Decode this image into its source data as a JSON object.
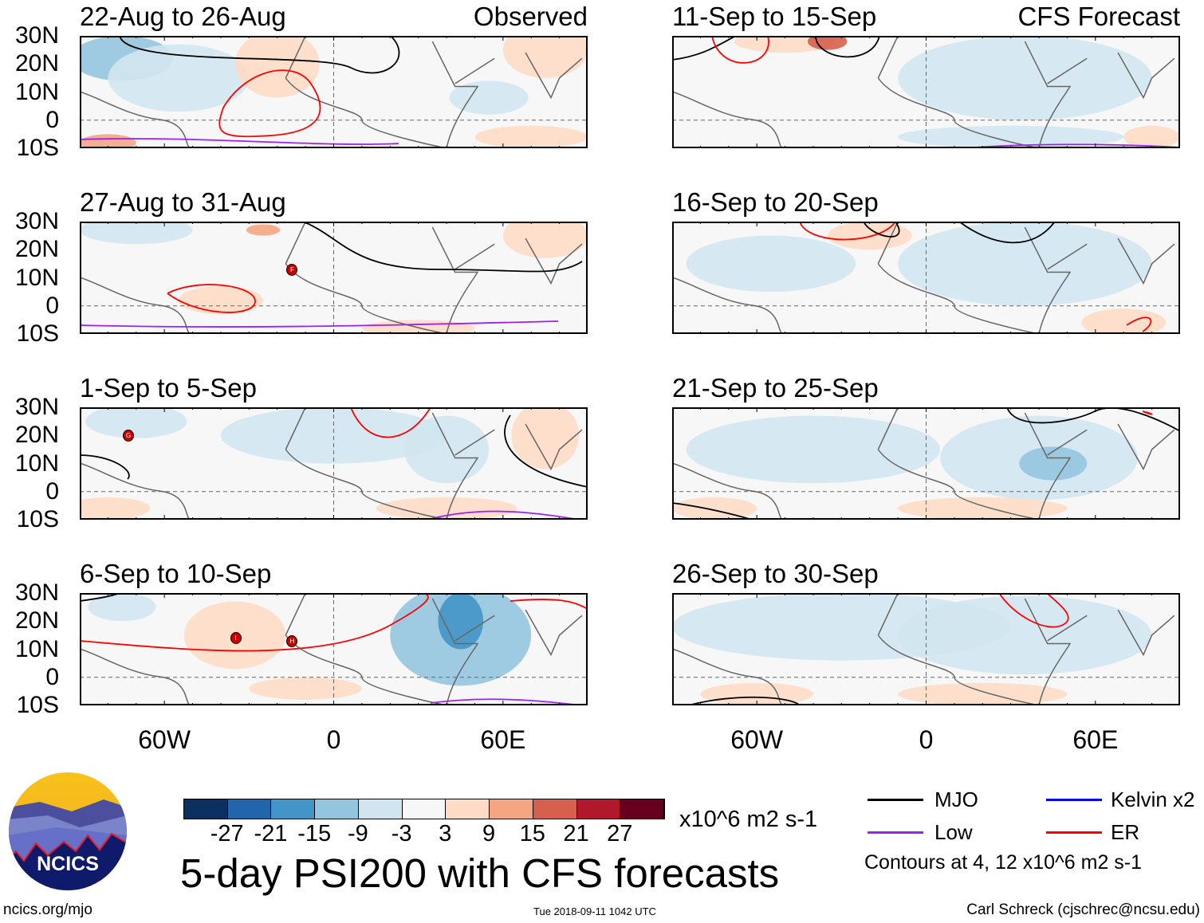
{
  "title": "5-day PSI200 with CFS forecasts",
  "columns": {
    "left_label": "Observed",
    "right_label": "CFS Forecast"
  },
  "panels_left": [
    "22-Aug to 26-Aug",
    "27-Aug to 31-Aug",
    "1-Sep to 5-Sep",
    "6-Sep to 10-Sep"
  ],
  "panels_right": [
    "11-Sep to 15-Sep",
    "16-Sep to 20-Sep",
    "21-Sep to 25-Sep",
    "26-Sep to 30-Sep"
  ],
  "lat_labels": [
    "30N",
    "20N",
    "10N",
    "0",
    "10S"
  ],
  "lon_labels": [
    "60W",
    "0",
    "60E"
  ],
  "colorbar": {
    "colors": [
      "#0b2f5f",
      "#2265ad",
      "#4295c6",
      "#93c5df",
      "#d1e5f0",
      "#f7f7f7",
      "#fddbc7",
      "#f4a582",
      "#d6604d",
      "#b2182b",
      "#67001f"
    ],
    "labels": [
      "-27",
      "-21",
      "-15",
      "-9",
      "-3",
      "3",
      "9",
      "15",
      "21",
      "27"
    ],
    "units": "x10^6 m2 s-1"
  },
  "legend": {
    "items": [
      {
        "label": "MJO",
        "color": "#000000"
      },
      {
        "label": "Kelvin x2",
        "color": "#0000ff"
      },
      {
        "label": "Low",
        "color": "#a020f0"
      },
      {
        "label": "ER",
        "color": "#ff0000"
      }
    ],
    "contours_note": "Contours at 4, 12 x10^6 m2 s-1"
  },
  "logo_text": "NCICS",
  "footer": {
    "url": "ncics.org/mjo",
    "timestamp": "Tue 2018-09-11 1042 UTC",
    "credit": "Carl Schreck (cjschrec@ncsu.edu)"
  },
  "storm_markers": {
    "panel2": [
      "F"
    ],
    "panel3": [
      "G"
    ],
    "panel4": [
      "I",
      "H"
    ]
  }
}
